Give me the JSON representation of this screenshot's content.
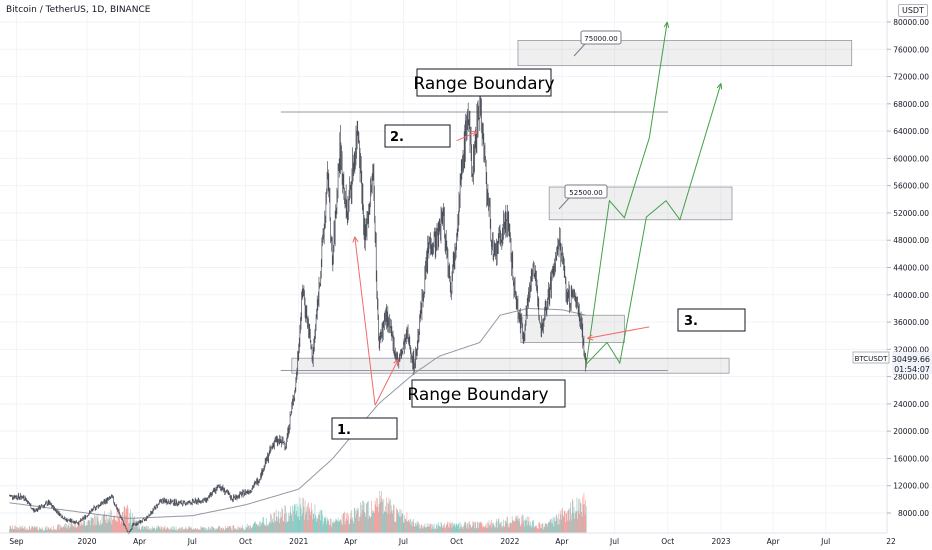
{
  "header": {
    "title": "Bitcoin / TetherUS, 1D, BINANCE",
    "currency": "USDT"
  },
  "chart_data": {
    "type": "candlestick",
    "symbol": "BTCUSDT",
    "last_price": "30499.66",
    "countdown": "01:54:07",
    "y_ticks": [
      "80000.00",
      "76000.00",
      "72000.00",
      "68000.00",
      "64000.00",
      "60000.00",
      "56000.00",
      "52000.00",
      "48000.00",
      "44000.00",
      "40000.00",
      "36000.00",
      "32000.00",
      "28000.00",
      "24000.00",
      "20000.00",
      "16000.00",
      "12000.00",
      "8000.00"
    ],
    "y_tick_values": [
      80000,
      76000,
      72000,
      68000,
      64000,
      60000,
      56000,
      52000,
      48000,
      44000,
      40000,
      36000,
      32000,
      28000,
      24000,
      20000,
      16000,
      12000,
      8000
    ],
    "x_ticks": [
      "Sep",
      "2020",
      "Apr",
      "Jul",
      "Oct",
      "2021",
      "Apr",
      "Jul",
      "Oct",
      "2022",
      "Apr",
      "Jul",
      "Oct",
      "2023",
      "Apr",
      "Jul",
      "22"
    ],
    "x_tick_dates": [
      "2019-09-01",
      "2020-01-01",
      "2020-04-01",
      "2020-07-01",
      "2020-10-01",
      "2021-01-01",
      "2021-04-01",
      "2021-07-01",
      "2021-10-01",
      "2022-01-01",
      "2022-04-01",
      "2022-07-01",
      "2022-10-01",
      "2023-01-01",
      "2023-04-01",
      "2023-07-01",
      "2023-10-22"
    ],
    "price_path": [
      [
        "2019-08-20",
        10500
      ],
      [
        "2019-09-15",
        10300
      ],
      [
        "2019-10-01",
        8300
      ],
      [
        "2019-10-26",
        9500
      ],
      [
        "2019-11-25",
        7000
      ],
      [
        "2019-12-18",
        6600
      ],
      [
        "2020-01-15",
        8800
      ],
      [
        "2020-02-13",
        10300
      ],
      [
        "2020-03-12",
        5000
      ],
      [
        "2020-03-20",
        6200
      ],
      [
        "2020-04-10",
        7000
      ],
      [
        "2020-05-08",
        9800
      ],
      [
        "2020-06-15",
        9400
      ],
      [
        "2020-07-25",
        9900
      ],
      [
        "2020-08-17",
        12000
      ],
      [
        "2020-09-08",
        10100
      ],
      [
        "2020-10-10",
        11400
      ],
      [
        "2020-10-25",
        13100
      ],
      [
        "2020-11-20",
        18600
      ],
      [
        "2020-12-10",
        18200
      ],
      [
        "2020-12-27",
        27000
      ],
      [
        "2021-01-08",
        41000
      ],
      [
        "2021-01-25",
        30500
      ],
      [
        "2021-02-08",
        44000
      ],
      [
        "2021-02-21",
        57500
      ],
      [
        "2021-02-28",
        44000
      ],
      [
        "2021-03-13",
        61500
      ],
      [
        "2021-03-25",
        51500
      ],
      [
        "2021-04-14",
        64800
      ],
      [
        "2021-04-25",
        48000
      ],
      [
        "2021-05-10",
        58000
      ],
      [
        "2021-05-19",
        33000
      ],
      [
        "2021-06-01",
        37000
      ],
      [
        "2021-06-22",
        30000
      ],
      [
        "2021-07-08",
        34000
      ],
      [
        "2021-07-20",
        29500
      ],
      [
        "2021-08-14",
        47500
      ],
      [
        "2021-08-28",
        48000
      ],
      [
        "2021-09-07",
        52000
      ],
      [
        "2021-09-21",
        41000
      ],
      [
        "2021-10-20",
        66800
      ],
      [
        "2021-10-28",
        58000
      ],
      [
        "2021-11-10",
        69000
      ],
      [
        "2021-11-22",
        56000
      ],
      [
        "2021-12-04",
        45000
      ],
      [
        "2021-12-27",
        51500
      ],
      [
        "2022-01-10",
        40000
      ],
      [
        "2022-01-24",
        34000
      ],
      [
        "2022-02-10",
        44800
      ],
      [
        "2022-02-24",
        35000
      ],
      [
        "2022-03-28",
        47800
      ],
      [
        "2022-04-11",
        39500
      ],
      [
        "2022-04-24",
        39800
      ],
      [
        "2022-05-05",
        36000
      ],
      [
        "2022-05-12",
        29200
      ],
      [
        "2022-05-13",
        30500
      ]
    ],
    "volume_path": [
      [
        "2019-08-20",
        6
      ],
      [
        "2019-11-01",
        5
      ],
      [
        "2020-03-12",
        22
      ],
      [
        "2020-04-01",
        6
      ],
      [
        "2020-07-01",
        5
      ],
      [
        "2020-10-01",
        6
      ],
      [
        "2021-01-11",
        28
      ],
      [
        "2021-03-01",
        10
      ],
      [
        "2021-05-19",
        34
      ],
      [
        "2021-06-22",
        20
      ],
      [
        "2021-08-01",
        8
      ],
      [
        "2021-11-10",
        9
      ],
      [
        "2022-01-24",
        14
      ],
      [
        "2022-03-01",
        7
      ],
      [
        "2022-05-12",
        34
      ]
    ],
    "vwap_path": [
      [
        "2019-08-20",
        9500
      ],
      [
        "2020-03-12",
        7200
      ],
      [
        "2020-07-01",
        7600
      ],
      [
        "2020-10-01",
        9200
      ],
      [
        "2021-01-01",
        11500
      ],
      [
        "2021-03-01",
        16000
      ],
      [
        "2021-05-19",
        24000
      ],
      [
        "2021-07-20",
        28500
      ],
      [
        "2021-09-01",
        31000
      ],
      [
        "2021-11-10",
        33000
      ],
      [
        "2021-12-15",
        37000
      ],
      [
        "2022-02-01",
        38000
      ],
      [
        "2022-04-01",
        37800
      ],
      [
        "2022-05-13",
        37000
      ]
    ],
    "annotations": {
      "range_boundary_top": "Range Boundary",
      "range_boundary_bottom": "Range Boundary",
      "label_1": "1.",
      "label_2": "2.",
      "label_3": "3.",
      "target_high": "75000.00",
      "target_mid": "52500.00"
    },
    "levels": {
      "top_line": 66800,
      "bottom_line": 28900
    },
    "zones": [
      {
        "name": "support-zone",
        "from": "2020-12-20",
        "to": "2023-01-15",
        "y0": 28500,
        "y1": 30700
      },
      {
        "name": "accumulation-zone",
        "from": "2022-01-20",
        "to": "2022-07-18",
        "y0": 33000,
        "y1": 37000
      },
      {
        "name": "target-mid-zone",
        "from": "2022-03-10",
        "to": "2023-01-20",
        "y0": 51000,
        "y1": 55800
      },
      {
        "name": "target-high-zone",
        "from": "2022-01-15",
        "to": "2023-08-15",
        "y0": 73600,
        "y1": 77300
      }
    ],
    "projections": [
      [
        [
          "2022-05-13",
          29800
        ],
        [
          "2022-06-22",
          53800
        ],
        [
          "2022-07-18",
          51300
        ],
        [
          "2022-08-30",
          63000
        ],
        [
          "2022-09-30",
          80000
        ]
      ],
      [
        [
          "2022-05-13",
          29800
        ],
        [
          "2022-06-18",
          33000
        ],
        [
          "2022-07-10",
          30000
        ],
        [
          "2022-08-25",
          51400
        ],
        [
          "2022-09-28",
          53800
        ],
        [
          "2022-10-22",
          51000
        ],
        [
          "2023-01-01",
          71000
        ]
      ]
    ],
    "arrows": [
      {
        "from": [
          "2021-05-13",
          23800
        ],
        "to": [
          "2021-04-08",
          48500
        ],
        "label": "label_1"
      },
      {
        "from": [
          "2021-05-13",
          23800
        ],
        "to": [
          "2021-06-22",
          30500
        ],
        "label": "label_1"
      },
      {
        "from": [
          "2021-10-01",
          62600
        ],
        "to": [
          "2021-11-05",
          63900
        ],
        "label": "label_2"
      },
      {
        "from": [
          "2022-08-30",
          35300
        ],
        "to": [
          "2022-05-15",
          33600
        ],
        "label": "label_3"
      }
    ]
  }
}
